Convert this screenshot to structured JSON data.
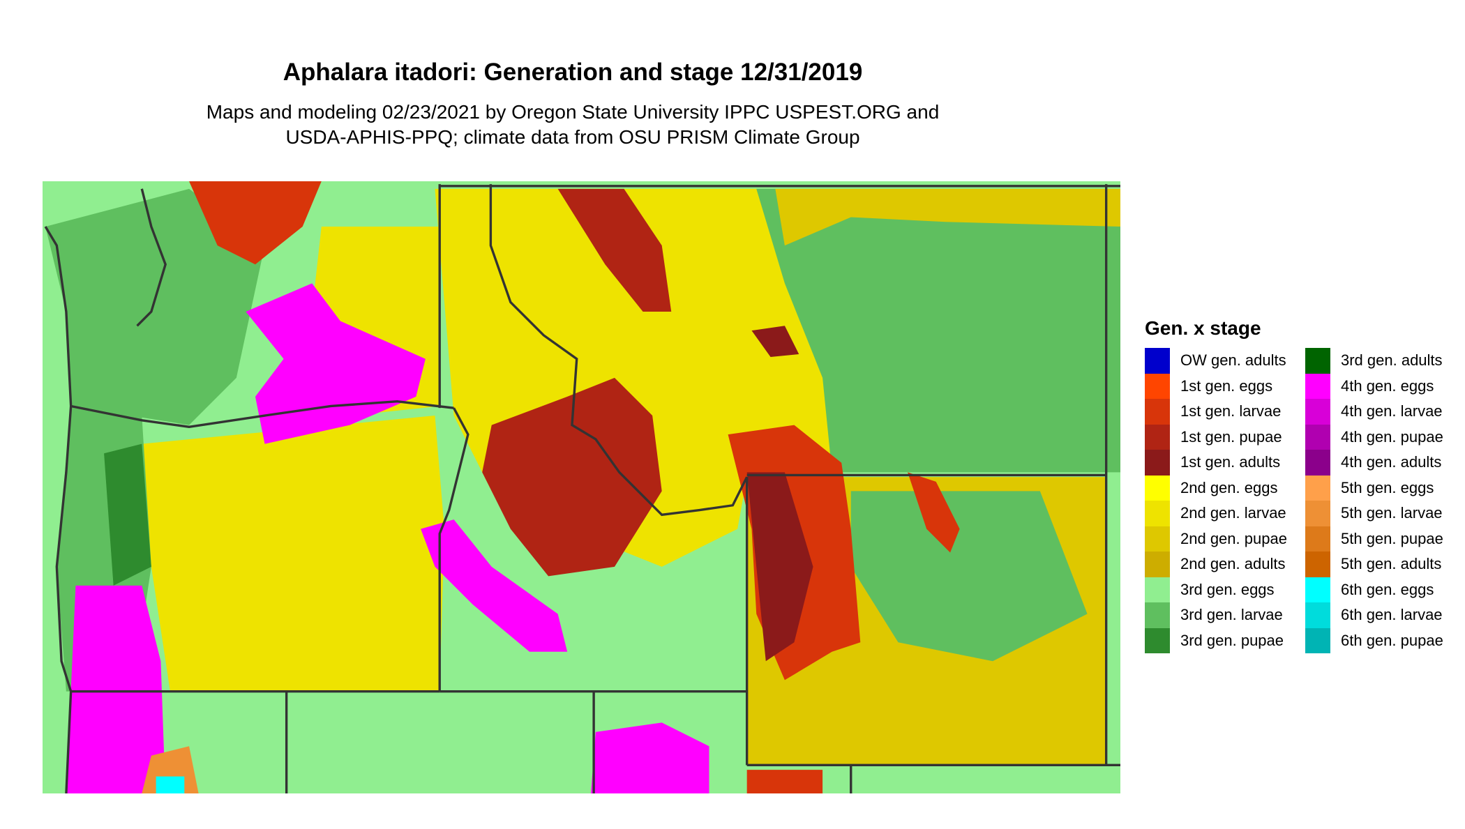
{
  "title": "Aphalara itadori: Generation and stage 12/31/2019",
  "subtitle_line1": "Maps and modeling 02/23/2021 by Oregon State University IPPC USPEST.ORG and",
  "subtitle_line2": "USDA-APHIS-PPQ; climate data from OSU PRISM Climate Group",
  "legend": {
    "title": "Gen. x stage",
    "col1": [
      {
        "label": "OW gen. adults",
        "color": "#0000cc"
      },
      {
        "label": "1st gen. eggs",
        "color": "#ff4500"
      },
      {
        "label": "1st gen. larvae",
        "color": "#d8350a"
      },
      {
        "label": "1st gen. pupae",
        "color": "#b02414"
      },
      {
        "label": "1st gen. adults",
        "color": "#8b1a1a"
      },
      {
        "label": "2nd gen. eggs",
        "color": "#ffff00"
      },
      {
        "label": "2nd gen. larvae",
        "color": "#eee300"
      },
      {
        "label": "2nd gen. pupae",
        "color": "#dec800"
      },
      {
        "label": "2nd gen. adults",
        "color": "#cdad00"
      },
      {
        "label": "3rd gen. eggs",
        "color": "#90ee90"
      },
      {
        "label": "3rd gen. larvae",
        "color": "#5fbf5f"
      },
      {
        "label": "3rd gen. pupae",
        "color": "#2e8b2e"
      }
    ],
    "col2": [
      {
        "label": "3rd gen. adults",
        "color": "#006400"
      },
      {
        "label": "4th gen. eggs",
        "color": "#ff00ff"
      },
      {
        "label": "4th gen. larvae",
        "color": "#d800d8"
      },
      {
        "label": "4th gen. pupae",
        "color": "#b000b0"
      },
      {
        "label": "4th gen. adults",
        "color": "#8b008b"
      },
      {
        "label": "5th gen. eggs",
        "color": "#ffa04a"
      },
      {
        "label": "5th gen. larvae",
        "color": "#ee9035"
      },
      {
        "label": "5th gen. pupae",
        "color": "#dd7a1a"
      },
      {
        "label": "5th gen. adults",
        "color": "#cd6400"
      },
      {
        "label": "6th gen. eggs",
        "color": "#00ffff"
      },
      {
        "label": "6th gen. larvae",
        "color": "#00dcdc"
      },
      {
        "label": "6th gen. pupae",
        "color": "#00b4b4"
      }
    ]
  }
}
